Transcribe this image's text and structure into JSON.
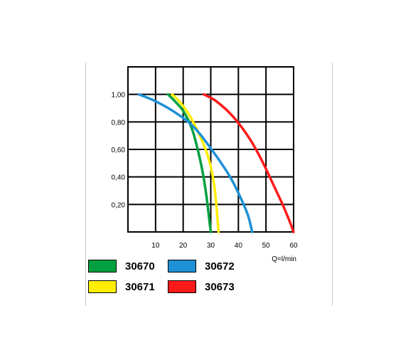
{
  "chart_data": {
    "type": "line",
    "title": "",
    "xlabel": "Q=l/min",
    "ylabel": "",
    "xlim": [
      0,
      60
    ],
    "ylim": [
      0,
      1.2
    ],
    "x_ticks": [
      "10",
      "20",
      "30",
      "40",
      "50",
      "60"
    ],
    "y_ticks": [
      "0,20",
      "0,40",
      "0,60",
      "0,80",
      "1,00"
    ],
    "x_tick_values": [
      10,
      20,
      30,
      40,
      50,
      60
    ],
    "y_tick_values": [
      0.2,
      0.4,
      0.6,
      0.8,
      1.0
    ],
    "grid": true,
    "legend_position": "bottom",
    "series": [
      {
        "name": "30670",
        "color": "#00a040",
        "points": [
          [
            14.5,
            1.0
          ],
          [
            17,
            0.95
          ],
          [
            20,
            0.88
          ],
          [
            23,
            0.76
          ],
          [
            25,
            0.62
          ],
          [
            27,
            0.44
          ],
          [
            28.5,
            0.25
          ],
          [
            29.5,
            0.08
          ],
          [
            30,
            0.0
          ]
        ]
      },
      {
        "name": "30671",
        "color": "#ffee00",
        "points": [
          [
            16,
            1.0
          ],
          [
            19,
            0.94
          ],
          [
            22.5,
            0.84
          ],
          [
            26,
            0.7
          ],
          [
            29,
            0.55
          ],
          [
            31,
            0.37
          ],
          [
            32,
            0.2
          ],
          [
            32.8,
            0.0
          ]
        ]
      },
      {
        "name": "30672",
        "color": "#1e90d6",
        "points": [
          [
            4,
            1.0
          ],
          [
            10,
            0.95
          ],
          [
            17,
            0.87
          ],
          [
            24,
            0.76
          ],
          [
            31,
            0.58
          ],
          [
            37,
            0.4
          ],
          [
            41,
            0.24
          ],
          [
            43.5,
            0.12
          ],
          [
            45,
            0.0
          ]
        ]
      },
      {
        "name": "30673",
        "color": "#ff1a1a",
        "points": [
          [
            27.5,
            1.0
          ],
          [
            32,
            0.95
          ],
          [
            38,
            0.84
          ],
          [
            44,
            0.68
          ],
          [
            48.5,
            0.52
          ],
          [
            52.5,
            0.35
          ],
          [
            56,
            0.2
          ],
          [
            58.5,
            0.08
          ],
          [
            60,
            0.0
          ]
        ]
      }
    ]
  }
}
